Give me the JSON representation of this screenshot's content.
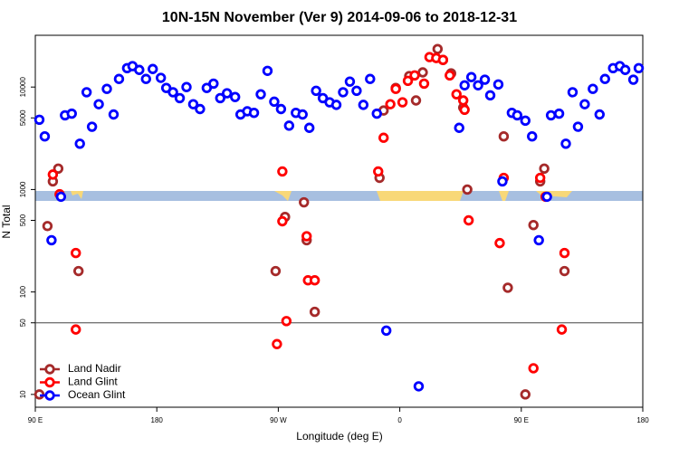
{
  "chart_data": {
    "type": "scatter",
    "title": "10N-15N November (Ver 9)   2014-09-06 to 2018-12-31",
    "x_label": "Longitude (deg E)",
    "y_label": "N Total",
    "xlim": [
      90,
      540
    ],
    "xticks": [
      {
        "value": 90,
        "label": "90 E"
      },
      {
        "value": 180,
        "label": "180"
      },
      {
        "value": 270,
        "label": "90 W"
      },
      {
        "value": 360,
        "label": "0"
      },
      {
        "value": 450,
        "label": "90 E"
      },
      {
        "value": 540,
        "label": "180"
      }
    ],
    "ylim": [
      7.5,
      32000
    ],
    "log_y": true,
    "yticks": [
      10,
      50,
      100,
      500,
      1000,
      5000,
      10000
    ],
    "reference_line": 50,
    "legend": "bottom-left",
    "series": [
      {
        "name": "Land Nadir",
        "color": "#a52a2a",
        "x": [
          93,
          99,
          103,
          107,
          122,
          268,
          275,
          289,
          291,
          297,
          345,
          348,
          357,
          367,
          372,
          377,
          388,
          392,
          398,
          407,
          410,
          437,
          440,
          453,
          459,
          464,
          467,
          482
        ],
        "values": [
          10,
          440,
          1200,
          1600,
          160,
          160,
          540,
          750,
          320,
          64,
          1300,
          5900,
          9800,
          12800,
          7400,
          13900,
          23500,
          18400,
          13600,
          6300,
          1000,
          3300,
          110,
          10,
          450,
          1200,
          1600,
          160
        ]
      },
      {
        "name": "Land Glint",
        "color": "#ff0000",
        "x": [
          103,
          108,
          120,
          120,
          273,
          269,
          276,
          291,
          292,
          297,
          273,
          344,
          348,
          353,
          357,
          362,
          366,
          371,
          378,
          382,
          387,
          392,
          397,
          402,
          407,
          408,
          411,
          434,
          437,
          459,
          464,
          468,
          480,
          482
        ],
        "values": [
          1400,
          900,
          240,
          43,
          1500,
          31,
          52,
          350,
          130,
          130,
          490,
          1500,
          3200,
          6800,
          9600,
          7100,
          11500,
          13000,
          10800,
          19600,
          19200,
          18400,
          13000,
          8500,
          7400,
          6000,
          500,
          300,
          1300,
          18,
          1300,
          850,
          43,
          240
        ]
      },
      {
        "name": "Ocean Glint",
        "color": "#0000ff",
        "x": [
          93,
          97,
          102,
          109,
          112,
          117,
          123,
          128,
          132,
          137,
          143,
          148,
          152,
          158,
          162,
          167,
          172,
          177,
          183,
          187,
          192,
          197,
          202,
          207,
          212,
          217,
          222,
          227,
          232,
          238,
          242,
          247,
          252,
          257,
          262,
          267,
          272,
          278,
          283,
          288,
          293,
          298,
          303,
          308,
          313,
          318,
          323,
          328,
          333,
          338,
          343,
          350,
          374,
          404,
          408,
          413,
          418,
          423,
          427,
          433,
          436,
          443,
          447,
          453,
          458,
          463,
          469,
          472,
          478,
          483,
          488,
          492,
          497,
          503,
          508,
          512,
          518,
          523,
          527,
          533,
          537
        ],
        "values": [
          4800,
          3300,
          320,
          850,
          5300,
          5500,
          2800,
          8900,
          4100,
          6800,
          9600,
          5400,
          12000,
          15300,
          16000,
          14700,
          12000,
          15000,
          12300,
          9800,
          8900,
          7800,
          10000,
          6800,
          6100,
          9800,
          10800,
          7800,
          8700,
          8000,
          5400,
          5800,
          5600,
          8500,
          14400,
          7200,
          6100,
          4200,
          5600,
          5400,
          4000,
          9200,
          7800,
          7100,
          6700,
          8900,
          11300,
          9200,
          6700,
          12000,
          5500,
          42,
          12,
          4000,
          10400,
          12500,
          10400,
          11800,
          8300,
          10600,
          1200,
          5600,
          5300,
          4700,
          3300,
          320,
          850,
          5300,
          5500,
          2800,
          8900,
          4100,
          6800,
          9600,
          5400,
          12000,
          15300,
          16000,
          14700,
          11800,
          15300
        ]
      }
    ]
  }
}
